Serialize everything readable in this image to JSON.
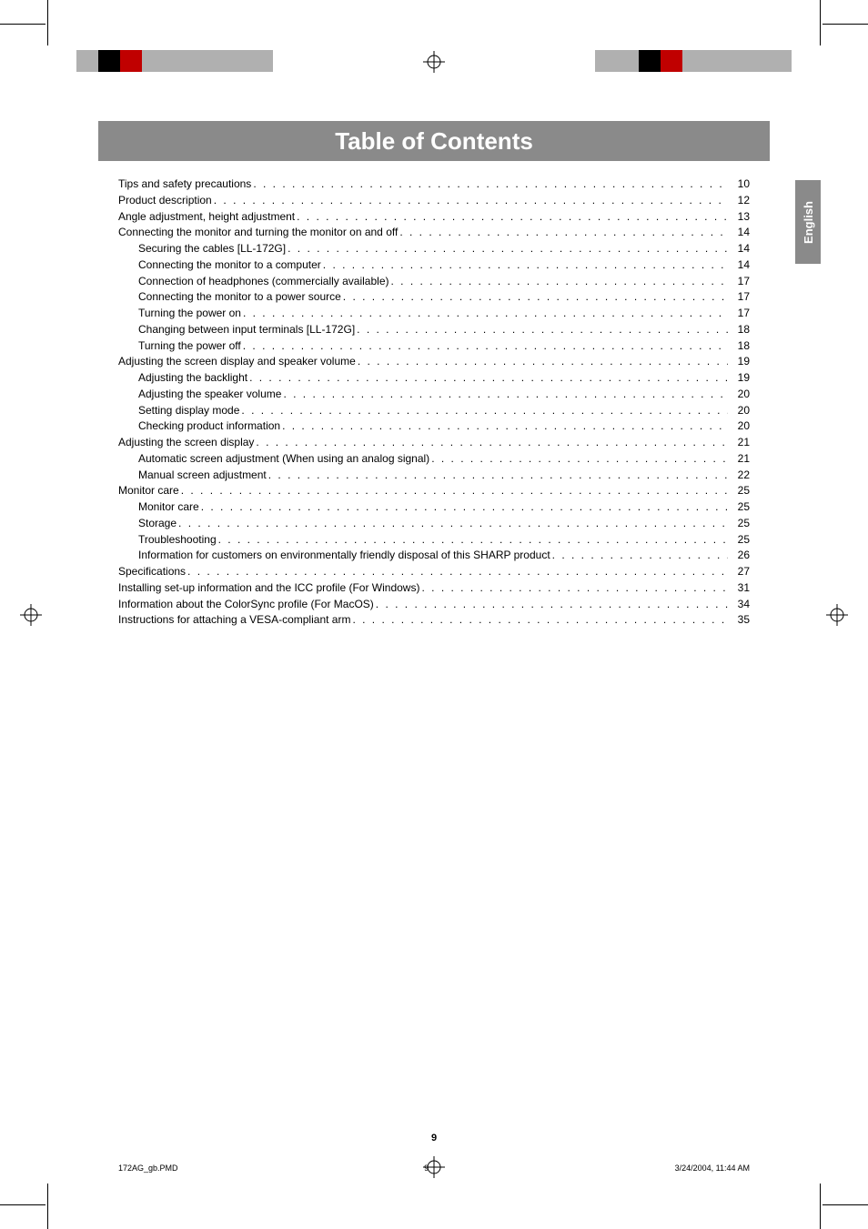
{
  "title": "Table of Contents",
  "language_tab": "English",
  "page_number": "9",
  "footer": {
    "filename": "172AG_gb.PMD",
    "sheet": "9",
    "timestamp": "3/24/2004, 11:44 AM"
  },
  "colors": {
    "title_bg": "#8a8a8a",
    "title_text": "#ffffff",
    "tab_bg": "#8a8a8a",
    "tab_text": "#ffffff",
    "body_text": "#000000",
    "page_bg": "#ffffff"
  },
  "colorbar_left": [
    "#b0b0b0",
    "#000000",
    "#c00000",
    "#b0b0b0",
    "#b0b0b0",
    "#b0b0b0",
    "#b0b0b0",
    "#b0b0b0",
    "#b0b0b0"
  ],
  "colorbar_right": [
    "#b0b0b0",
    "#b0b0b0",
    "#000000",
    "#c00000",
    "#b0b0b0",
    "#b0b0b0",
    "#b0b0b0",
    "#b0b0b0",
    "#b0b0b0"
  ],
  "toc": [
    {
      "indent": 0,
      "label": "Tips and safety precautions",
      "page": "10"
    },
    {
      "indent": 0,
      "label": "Product description",
      "page": "12"
    },
    {
      "indent": 0,
      "label": "Angle adjustment, height adjustment",
      "page": "13"
    },
    {
      "indent": 0,
      "label": "Connecting the monitor and turning the monitor on and off",
      "page": "14"
    },
    {
      "indent": 1,
      "label": "Securing the cables [LL-172G]",
      "page": "14"
    },
    {
      "indent": 1,
      "label": "Connecting the monitor to a computer",
      "page": "14"
    },
    {
      "indent": 1,
      "label": "Connection of headphones (commercially available)",
      "page": "17"
    },
    {
      "indent": 1,
      "label": "Connecting the monitor to a power source",
      "page": "17"
    },
    {
      "indent": 1,
      "label": "Turning the power on",
      "page": "17"
    },
    {
      "indent": 1,
      "label": "Changing between input terminals [LL-172G]",
      "page": "18"
    },
    {
      "indent": 1,
      "label": "Turning the power off",
      "page": "18"
    },
    {
      "indent": 0,
      "label": "Adjusting the screen display and speaker volume",
      "page": "19"
    },
    {
      "indent": 1,
      "label": "Adjusting the backlight",
      "page": "19"
    },
    {
      "indent": 1,
      "label": "Adjusting the speaker volume",
      "page": "20"
    },
    {
      "indent": 1,
      "label": "Setting display mode",
      "page": "20"
    },
    {
      "indent": 1,
      "label": "Checking product information",
      "page": "20"
    },
    {
      "indent": 0,
      "label": "Adjusting the screen display",
      "page": "21"
    },
    {
      "indent": 1,
      "label": "Automatic screen adjustment (When using an analog signal)",
      "page": "21"
    },
    {
      "indent": 1,
      "label": "Manual screen adjustment",
      "page": "22"
    },
    {
      "indent": 0,
      "label": "Monitor care",
      "page": "25"
    },
    {
      "indent": 1,
      "label": "Monitor care",
      "page": "25"
    },
    {
      "indent": 1,
      "label": "Storage",
      "page": "25"
    },
    {
      "indent": 1,
      "label": "Troubleshooting",
      "page": "25"
    },
    {
      "indent": 1,
      "label": "Information for customers on environmentally friendly disposal of this SHARP product",
      "page": "26"
    },
    {
      "indent": 0,
      "label": "Specifications",
      "page": "27"
    },
    {
      "indent": 0,
      "label": "Installing set-up information and the ICC profile (For Windows)",
      "page": "31"
    },
    {
      "indent": 0,
      "label": "Information about the ColorSync profile (For MacOS)",
      "page": "34"
    },
    {
      "indent": 0,
      "label": "Instructions for attaching a VESA-compliant arm",
      "page": "35"
    }
  ]
}
